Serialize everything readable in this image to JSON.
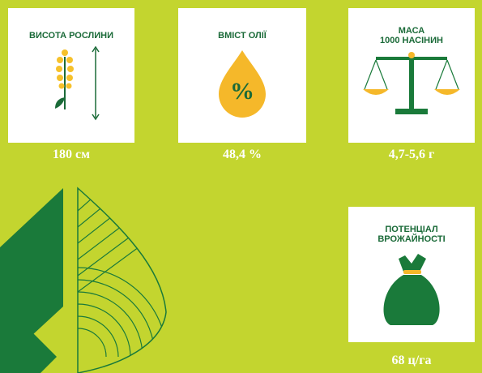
{
  "cards": [
    {
      "title_lines": [
        "ВИСОТА РОСЛИНИ"
      ],
      "value": "180 см"
    },
    {
      "title_lines": [
        "ВМІСТ ОЛІЇ"
      ],
      "icon_text": "%",
      "value": "48,4 %"
    },
    {
      "title_lines": [
        "МАСА",
        "1000 НАСІНИН"
      ],
      "value": "4,7-5,6 г"
    },
    {
      "title_lines": [
        "ПОТЕНЦІАЛ",
        "ВРОЖАЙНОСТІ"
      ],
      "value": "68 ц/га"
    }
  ]
}
